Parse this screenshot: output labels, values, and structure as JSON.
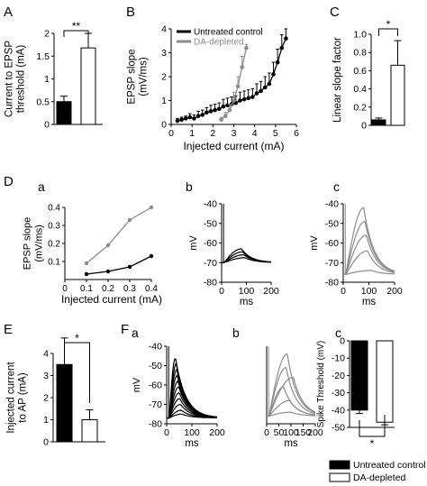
{
  "panel_labels": [
    "A",
    "B",
    "C",
    "D",
    "a",
    "b",
    "c",
    "E",
    "F",
    "a",
    "b",
    "c"
  ],
  "colors": {
    "control": "#000000",
    "depleted": "#ffffff",
    "depleted_trace": "#8c8c8c"
  },
  "legend": {
    "control": "Untreated control",
    "depleted": "DA-depleted"
  },
  "chart_data": [
    {
      "id": "A",
      "type": "bar",
      "ylabel_lines": [
        "Current to EPSP",
        "threshold (mA)"
      ],
      "ylim": [
        0,
        2
      ],
      "yticks": [
        "0",
        "0.5",
        "1",
        "1.5",
        "2"
      ],
      "categories": [
        "Untreated control",
        "DA-depleted"
      ],
      "values": [
        0.5,
        1.68
      ],
      "errors": [
        0.12,
        0.32
      ],
      "significance": "**"
    },
    {
      "id": "B",
      "type": "line",
      "xlabel": "Injected current (mA)",
      "ylabel_lines": [
        "EPSP slope",
        "(mV/ms)"
      ],
      "xlim": [
        0,
        6
      ],
      "ylim": [
        0,
        4
      ],
      "xticks": [
        "0",
        "1",
        "2",
        "3",
        "4",
        "5",
        "6"
      ],
      "yticks": [
        "0",
        "1",
        "2",
        "3",
        "4"
      ],
      "legend": [
        "Untreated control",
        "DA-depleted"
      ],
      "series": [
        {
          "name": "Untreated control",
          "x": [
            0.3,
            0.5,
            0.7,
            0.9,
            1.1,
            1.3,
            1.5,
            1.7,
            1.9,
            2.1,
            2.3,
            2.5,
            2.7,
            2.9,
            3.1,
            3.3,
            3.5,
            3.7,
            3.9,
            4.1,
            4.3,
            4.5,
            4.7,
            4.9,
            5.1,
            5.3,
            5.5
          ],
          "y": [
            0.15,
            0.2,
            0.25,
            0.3,
            0.25,
            0.35,
            0.4,
            0.5,
            0.55,
            0.6,
            0.65,
            0.75,
            0.8,
            0.85,
            0.9,
            1.0,
            1.05,
            1.1,
            1.15,
            1.3,
            1.4,
            1.55,
            1.7,
            2.1,
            2.6,
            3.2,
            3.6
          ],
          "err": [
            0.1,
            0.1,
            0.1,
            0.15,
            0.15,
            0.2,
            0.2,
            0.2,
            0.25,
            0.25,
            0.25,
            0.3,
            0.3,
            0.3,
            0.3,
            0.35,
            0.35,
            0.35,
            0.35,
            0.4,
            0.4,
            0.45,
            0.45,
            0.5,
            0.55,
            0.55,
            0.6
          ]
        },
        {
          "name": "DA-depleted",
          "x": [
            2.4,
            2.6,
            2.8,
            3.0,
            3.2,
            3.4,
            3.6
          ],
          "y": [
            0.2,
            0.35,
            0.6,
            1.0,
            1.6,
            2.4,
            3.2
          ],
          "err": [
            0.1,
            0.15,
            0.25,
            0.35,
            0.4,
            0.45,
            0.15
          ]
        }
      ]
    },
    {
      "id": "C",
      "type": "bar",
      "ylabel_lines": [
        "Linear slope factor"
      ],
      "ylim": [
        0,
        1
      ],
      "yticks": [
        "0",
        "0.2",
        "0.4",
        "0.6",
        "0.8",
        "1.0"
      ],
      "categories": [
        "Untreated control",
        "DA-depleted"
      ],
      "values": [
        0.06,
        0.66
      ],
      "errors": [
        0.02,
        0.27
      ],
      "significance": "*"
    },
    {
      "id": "Da",
      "type": "line",
      "xlabel": "Injected current (mA)",
      "ylabel_lines": [
        "EPSP slope",
        "(mV/ms)"
      ],
      "xlim": [
        0,
        0.4
      ],
      "ylim": [
        0,
        0.4
      ],
      "xticks": [
        "0",
        "0.1",
        "0.2",
        "0.3",
        "0.4"
      ],
      "yticks": [
        "0.1",
        "0.2",
        "0.3",
        "0.4"
      ],
      "series": [
        {
          "name": "Untreated control",
          "x": [
            0.1,
            0.2,
            0.3,
            0.4
          ],
          "y": [
            0.03,
            0.045,
            0.07,
            0.13
          ]
        },
        {
          "name": "DA-depleted",
          "x": [
            0.1,
            0.2,
            0.3,
            0.4
          ],
          "y": [
            0.09,
            0.19,
            0.33,
            0.4
          ]
        }
      ]
    },
    {
      "id": "Db",
      "type": "line",
      "xlabel": "ms",
      "ylabel_lines": [
        "mV"
      ],
      "xlim": [
        0,
        200
      ],
      "ylim": [
        -80,
        -40
      ],
      "xticks": [
        "0",
        "100",
        "200"
      ],
      "yticks": [
        "-40",
        "-50",
        "-60",
        "-70",
        "-80"
      ],
      "traces": [
        {
          "amp": 7,
          "peak_t": 80
        },
        {
          "amp": 5.5,
          "peak_t": 85
        },
        {
          "amp": 4,
          "peak_t": 90
        },
        {
          "amp": 2.5,
          "peak_t": 95
        }
      ],
      "baseline": -70,
      "trace_color": "control"
    },
    {
      "id": "Dc",
      "type": "line",
      "xlabel": "ms",
      "ylabel_lines": [
        "mV"
      ],
      "xlim": [
        0,
        200
      ],
      "ylim": [
        -80,
        -40
      ],
      "xticks": [
        "0",
        "100",
        "200"
      ],
      "yticks": [
        "-40",
        "-50",
        "-60",
        "-70",
        "-80"
      ],
      "traces": [
        {
          "amp": 34,
          "peak_t": 80
        },
        {
          "amp": 27,
          "peak_t": 85
        },
        {
          "amp": 20,
          "peak_t": 90
        },
        {
          "amp": 12,
          "peak_t": 95
        },
        {
          "amp": 2,
          "peak_t": 110
        }
      ],
      "baseline": -76,
      "trace_color": "depleted_trace"
    },
    {
      "id": "E",
      "type": "bar",
      "ylabel_lines": [
        "Injected current",
        "to AP (mA)"
      ],
      "ylim": [
        0,
        4
      ],
      "yticks": [
        "0",
        "1",
        "2",
        "3",
        "4"
      ],
      "categories": [
        "Untreated control",
        "DA-depleted"
      ],
      "values": [
        3.5,
        1.0
      ],
      "errors": [
        1.2,
        0.45
      ],
      "significance": "*"
    },
    {
      "id": "Fa",
      "type": "line",
      "xlabel": "ms",
      "ylabel_lines": [
        "mV"
      ],
      "xlim": [
        0,
        200
      ],
      "ylim": [
        -80,
        -40
      ],
      "xticks": [
        "0",
        "100",
        "200"
      ],
      "yticks": [
        "-40",
        "-50",
        "-60",
        "-70",
        "-80"
      ],
      "traces": [
        {
          "amp": 31,
          "peak_t": 35
        },
        {
          "amp": 28,
          "peak_t": 38
        },
        {
          "amp": 25,
          "peak_t": 40
        },
        {
          "amp": 22,
          "peak_t": 42
        },
        {
          "amp": 19,
          "peak_t": 45
        },
        {
          "amp": 16,
          "peak_t": 48
        },
        {
          "amp": 13,
          "peak_t": 50
        },
        {
          "amp": 10,
          "peak_t": 52
        },
        {
          "amp": 7,
          "peak_t": 55
        },
        {
          "amp": 4,
          "peak_t": 58
        },
        {
          "amp": 2,
          "peak_t": 60
        }
      ],
      "baseline": -77,
      "trace_color": "control"
    },
    {
      "id": "Fb",
      "type": "line",
      "xlabel": "ms",
      "ylabel_lines": [],
      "xlim": [
        0,
        200
      ],
      "ylim": [
        -80,
        -40
      ],
      "xticks": [
        "0",
        "50",
        "100",
        "150",
        "200"
      ],
      "yticks": [],
      "traces": [
        {
          "amp": 32,
          "peak_t": 85
        },
        {
          "amp": 25,
          "peak_t": 80
        },
        {
          "amp": 20,
          "peak_t": 110
        },
        {
          "amp": 15,
          "peak_t": 70
        },
        {
          "amp": 8,
          "peak_t": 95
        },
        {
          "amp": 2,
          "peak_t": 100
        }
      ],
      "baseline": -76,
      "trace_color": "depleted_trace"
    },
    {
      "id": "Fc",
      "type": "bar",
      "ylabel_lines": [
        "Spike Threshold (mV)"
      ],
      "ylim": [
        -50,
        0
      ],
      "yticks": [
        "0",
        "-10",
        "-20",
        "-30",
        "-40",
        "-50"
      ],
      "categories": [
        "Untreated control",
        "DA-depleted"
      ],
      "values": [
        -40,
        -47
      ],
      "errors": [
        2,
        1.5
      ],
      "significance": "*"
    }
  ]
}
